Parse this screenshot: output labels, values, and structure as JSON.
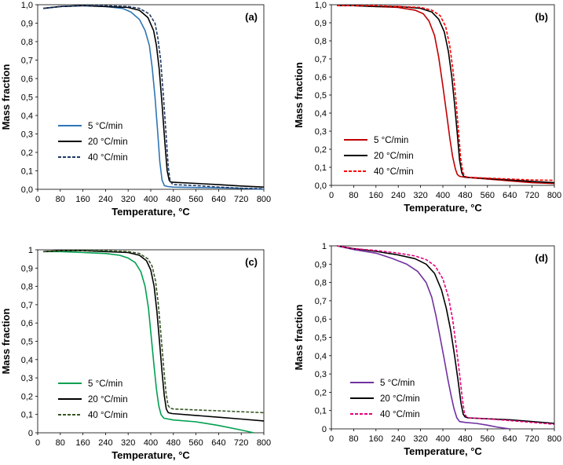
{
  "chart_data": [
    {
      "type": "line",
      "panel_label": "(a)",
      "xlabel": "Temperature, °C",
      "ylabel": "Mass fraction",
      "xlim": [
        0,
        800
      ],
      "ylim": [
        0,
        1
      ],
      "x_ticks": [
        "0",
        "80",
        "160",
        "240",
        "320",
        "400",
        "480",
        "560",
        "640",
        "720",
        "800"
      ],
      "y_ticks": [
        "0,0",
        "0,1",
        "0,2",
        "0,3",
        "0,4",
        "0,5",
        "0,6",
        "0,7",
        "0,8",
        "0,9",
        "1,0"
      ],
      "legend": "left-middle",
      "series": [
        {
          "name": "5 °C/min",
          "color": "#2e75b6",
          "dash": "solid",
          "x": [
            20,
            80,
            160,
            240,
            300,
            330,
            360,
            380,
            395,
            405,
            415,
            425,
            432,
            440,
            448,
            460,
            480,
            560,
            640,
            720,
            800
          ],
          "y": [
            0.98,
            0.99,
            0.995,
            0.99,
            0.98,
            0.96,
            0.92,
            0.86,
            0.78,
            0.66,
            0.5,
            0.3,
            0.15,
            0.05,
            0.02,
            0.015,
            0.012,
            0.01,
            0.008,
            0.005,
            0.0
          ]
        },
        {
          "name": "20 °C/min",
          "color": "#000000",
          "dash": "solid",
          "x": [
            20,
            80,
            160,
            240,
            320,
            360,
            390,
            410,
            420,
            430,
            440,
            450,
            458,
            465,
            470,
            480,
            560,
            640,
            720,
            800
          ],
          "y": [
            0.98,
            0.99,
            0.995,
            0.99,
            0.985,
            0.97,
            0.93,
            0.86,
            0.78,
            0.65,
            0.46,
            0.25,
            0.1,
            0.05,
            0.04,
            0.038,
            0.032,
            0.025,
            0.018,
            0.012
          ]
        },
        {
          "name": "40 °C/min",
          "color": "#1f3864",
          "dash": "dashed",
          "x": [
            20,
            80,
            160,
            240,
            320,
            360,
            395,
            415,
            425,
            435,
            445,
            455,
            462,
            468,
            475,
            485,
            560,
            640,
            720,
            800
          ],
          "y": [
            0.98,
            0.99,
            0.995,
            0.995,
            0.99,
            0.98,
            0.95,
            0.9,
            0.82,
            0.7,
            0.5,
            0.28,
            0.12,
            0.05,
            0.03,
            0.025,
            0.02,
            0.012,
            0.006,
            0.003
          ]
        }
      ]
    },
    {
      "type": "line",
      "panel_label": "(b)",
      "xlabel": "Temperature, °C",
      "ylabel": "Mass fraction",
      "xlim": [
        0,
        800
      ],
      "ylim": [
        0,
        1
      ],
      "x_ticks": [
        "0",
        "80",
        "160",
        "240",
        "320",
        "400",
        "480",
        "560",
        "640",
        "720",
        "800"
      ],
      "y_ticks": [
        "0,0",
        "0,1",
        "0,2",
        "0,3",
        "0,4",
        "0,5",
        "0,6",
        "0,7",
        "0,8",
        "0,9",
        "1,0"
      ],
      "legend": "left-lower",
      "series": [
        {
          "name": "5 °C/min",
          "color": "#c00000",
          "dash": "solid",
          "x": [
            20,
            80,
            160,
            240,
            300,
            330,
            350,
            370,
            385,
            400,
            415,
            425,
            435,
            445,
            452,
            460,
            480,
            560,
            640,
            720,
            800
          ],
          "y": [
            0.995,
            0.995,
            0.99,
            0.985,
            0.97,
            0.95,
            0.91,
            0.83,
            0.71,
            0.55,
            0.38,
            0.26,
            0.16,
            0.09,
            0.06,
            0.05,
            0.045,
            0.035,
            0.025,
            0.015,
            0.01
          ]
        },
        {
          "name": "20 °C/min",
          "color": "#000000",
          "dash": "solid",
          "x": [
            20,
            80,
            160,
            240,
            320,
            360,
            385,
            405,
            420,
            432,
            442,
            452,
            460,
            468,
            475,
            485,
            560,
            640,
            720,
            800
          ],
          "y": [
            0.995,
            0.995,
            0.99,
            0.99,
            0.98,
            0.96,
            0.92,
            0.85,
            0.74,
            0.6,
            0.45,
            0.28,
            0.14,
            0.07,
            0.05,
            0.045,
            0.038,
            0.03,
            0.022,
            0.015
          ]
        },
        {
          "name": "40 °C/min",
          "color": "#ff0000",
          "dash": "dashed",
          "x": [
            20,
            80,
            160,
            240,
            320,
            360,
            390,
            410,
            425,
            437,
            447,
            456,
            464,
            472,
            480,
            490,
            560,
            640,
            720,
            800
          ],
          "y": [
            0.995,
            0.995,
            0.995,
            0.99,
            0.985,
            0.97,
            0.94,
            0.88,
            0.77,
            0.63,
            0.47,
            0.3,
            0.15,
            0.07,
            0.05,
            0.045,
            0.04,
            0.035,
            0.03,
            0.028
          ]
        }
      ]
    },
    {
      "type": "line",
      "panel_label": "(c)",
      "xlabel": "Temperature, °C",
      "ylabel": "Mass fraction",
      "xlim": [
        0,
        800
      ],
      "ylim": [
        0,
        1
      ],
      "x_ticks": [
        "0",
        "80",
        "160",
        "240",
        "320",
        "400",
        "480",
        "560",
        "640",
        "720",
        "800"
      ],
      "y_ticks": [
        "0",
        "0,1",
        "0,2",
        "0,3",
        "0,4",
        "0,5",
        "0,6",
        "0,7",
        "0,8",
        "0,9",
        "1"
      ],
      "legend": "left-lower",
      "series": [
        {
          "name": "5 °C/min",
          "color": "#00a050",
          "dash": "solid",
          "x": [
            20,
            80,
            160,
            240,
            290,
            320,
            345,
            365,
            380,
            392,
            402,
            412,
            420,
            428,
            436,
            446,
            480,
            560,
            640,
            720,
            765
          ],
          "y": [
            0.99,
            0.99,
            0.985,
            0.98,
            0.97,
            0.955,
            0.93,
            0.88,
            0.8,
            0.68,
            0.52,
            0.36,
            0.24,
            0.15,
            0.1,
            0.08,
            0.07,
            0.06,
            0.04,
            0.015,
            0.0
          ]
        },
        {
          "name": "20 °C/min",
          "color": "#000000",
          "dash": "solid",
          "x": [
            20,
            80,
            160,
            240,
            320,
            360,
            385,
            400,
            412,
            422,
            432,
            440,
            448,
            455,
            462,
            475,
            560,
            640,
            720,
            800
          ],
          "y": [
            0.99,
            0.995,
            0.995,
            0.99,
            0.985,
            0.97,
            0.94,
            0.89,
            0.8,
            0.66,
            0.48,
            0.33,
            0.2,
            0.13,
            0.11,
            0.105,
            0.095,
            0.085,
            0.075,
            0.065
          ]
        },
        {
          "name": "40 °C/min",
          "color": "#375623",
          "dash": "dashed",
          "x": [
            20,
            80,
            160,
            240,
            320,
            360,
            390,
            405,
            417,
            427,
            437,
            446,
            454,
            461,
            468,
            480,
            560,
            640,
            720,
            800
          ],
          "y": [
            0.99,
            0.995,
            0.995,
            0.995,
            0.99,
            0.98,
            0.95,
            0.91,
            0.83,
            0.7,
            0.52,
            0.35,
            0.22,
            0.15,
            0.135,
            0.13,
            0.125,
            0.12,
            0.115,
            0.11
          ]
        }
      ]
    },
    {
      "type": "line",
      "panel_label": "(d)",
      "xlabel": "Temperature, °C",
      "ylabel": "Mass fraction",
      "xlim": [
        0,
        800
      ],
      "ylim": [
        0,
        1
      ],
      "x_ticks": [
        "0",
        "80",
        "160",
        "240",
        "320",
        "400",
        "480",
        "560",
        "640",
        "720",
        "800"
      ],
      "y_ticks": [
        "0",
        "0,1",
        "0,2",
        "0,3",
        "0,4",
        "0,5",
        "0,6",
        "0,7",
        "0,8",
        "0,9",
        "1"
      ],
      "legend": "left-lower",
      "series": [
        {
          "name": "5 °C/min",
          "color": "#7030a0",
          "dash": "solid",
          "x": [
            20,
            80,
            160,
            220,
            270,
            310,
            340,
            360,
            375,
            390,
            405,
            418,
            430,
            440,
            450,
            460,
            480,
            520,
            560,
            600,
            640
          ],
          "y": [
            1.0,
            0.98,
            0.96,
            0.93,
            0.9,
            0.86,
            0.8,
            0.72,
            0.62,
            0.5,
            0.38,
            0.27,
            0.18,
            0.11,
            0.06,
            0.04,
            0.035,
            0.03,
            0.02,
            0.008,
            0.0
          ]
        },
        {
          "name": "20 °C/min",
          "color": "#000000",
          "dash": "solid",
          "x": [
            20,
            80,
            160,
            240,
            300,
            340,
            370,
            395,
            412,
            428,
            442,
            455,
            465,
            473,
            480,
            490,
            560,
            640,
            720,
            800
          ],
          "y": [
            1.0,
            0.985,
            0.97,
            0.95,
            0.93,
            0.9,
            0.85,
            0.76,
            0.66,
            0.54,
            0.4,
            0.26,
            0.14,
            0.08,
            0.065,
            0.06,
            0.055,
            0.05,
            0.04,
            0.03
          ]
        },
        {
          "name": "40 °C/min",
          "color": "#e6007e",
          "dash": "dashed",
          "x": [
            20,
            80,
            160,
            240,
            300,
            340,
            372,
            400,
            420,
            435,
            448,
            460,
            470,
            478,
            486,
            495,
            560,
            640,
            720,
            800
          ],
          "y": [
            1.0,
            0.985,
            0.975,
            0.96,
            0.945,
            0.925,
            0.89,
            0.82,
            0.72,
            0.6,
            0.45,
            0.3,
            0.16,
            0.08,
            0.065,
            0.06,
            0.055,
            0.045,
            0.035,
            0.025
          ]
        }
      ]
    }
  ]
}
